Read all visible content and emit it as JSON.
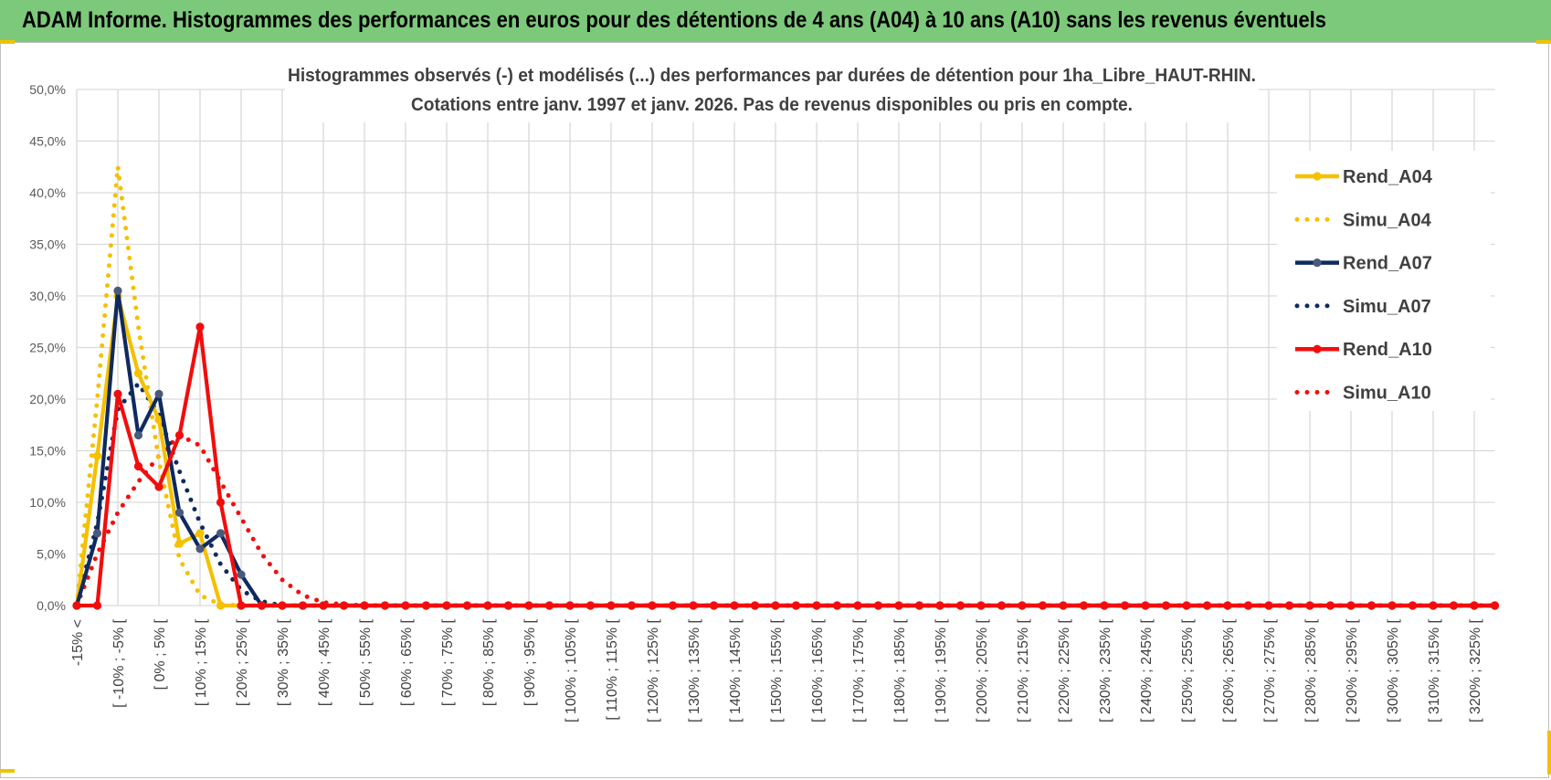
{
  "banner": {
    "title": "ADAM Informe. Histogrammes des performances en euros pour des détentions de 4 ans (A04) à 10 ans (A10) sans les revenus éventuels"
  },
  "colors": {
    "banner": "#7dc97b",
    "A04": "#f5c000",
    "A07": "#0f2a5f",
    "A07_marker": "#4a5a7a",
    "A10": "#f20d0d",
    "grid": "#d9d9d9"
  },
  "chart_data": {
    "type": "line",
    "title": [
      "Histogrammes observés (-) et modélisés (...) des performances par durées de détention pour 1ha_Libre_HAUT-RHIN.",
      "Cotations entre janv. 1997 et janv. 2026. Pas de revenus disponibles ou pris en compte."
    ],
    "ylim": [
      0,
      50
    ],
    "yticks": [
      "0,0%",
      "5,0%",
      "10,0%",
      "15,0%",
      "20,0%",
      "25,0%",
      "30,0%",
      "35,0%",
      "40,0%",
      "45,0%",
      "50,0%"
    ],
    "grid": true,
    "legend_position": "right",
    "n_points": 70,
    "x_tick_labels": [
      "-15% <",
      "[ -10% ; -5% [",
      "[ 0% ; 5% [",
      "[ 10% ; 15% [",
      "[ 20% ; 25% [",
      "[ 30% ; 35% [",
      "[ 40% ; 45% [",
      "[ 50% ; 55% [",
      "[ 60% ; 65% [",
      "[ 70% ; 75% [",
      "[ 80% ; 85% [",
      "[ 90% ; 95% [",
      "[ 100% ; 105% [",
      "[ 110% ; 115% [",
      "[ 120% ; 125% [",
      "[ 130% ; 135% [",
      "[ 140% ; 145% [",
      "[ 150% ; 155% [",
      "[ 160% ; 165% [",
      "[ 170% ; 175% [",
      "[ 180% ; 185% [",
      "[ 190% ; 195% [",
      "[ 200% ; 205% [",
      "[ 210% ; 215% [",
      "[ 220% ; 225% [",
      "[ 230% ; 235% [",
      "[ 240% ; 245% [",
      "[ 250% ; 255% [",
      "[ 260% ; 265% [",
      "[ 270% ; 275% [",
      "[ 280% ; 285% [",
      "[ 290% ; 295% [",
      "[ 300% ; 305% [",
      "[ 310% ; 315% [",
      "[ 320% ; 325% ["
    ],
    "series": [
      {
        "name": "Rend_A04",
        "style": "solid",
        "color": "#f5c000",
        "values": [
          0,
          14.5,
          30,
          22.5,
          18,
          6,
          7,
          0,
          0
        ]
      },
      {
        "name": "Simu_A04",
        "style": "dotted",
        "color": "#f5c000",
        "values": [
          0,
          20,
          42.5,
          27,
          14,
          4.5,
          1,
          0.1,
          0
        ]
      },
      {
        "name": "Rend_A07",
        "style": "solid",
        "color": "#0f2a5f",
        "values": [
          0,
          7,
          30.5,
          16.5,
          20.5,
          9,
          5.5,
          7,
          3,
          0
        ]
      },
      {
        "name": "Simu_A07",
        "style": "dotted",
        "color": "#0f2a5f",
        "values": [
          0,
          8,
          19,
          21.5,
          18.5,
          13,
          8,
          4,
          1.5,
          0.4,
          0
        ]
      },
      {
        "name": "Rend_A10",
        "style": "solid",
        "color": "#f20d0d",
        "values": [
          0,
          0,
          20.5,
          13.5,
          11.5,
          16.5,
          27,
          10,
          0
        ]
      },
      {
        "name": "Simu_A10",
        "style": "dotted",
        "color": "#f20d0d",
        "values": [
          0,
          5,
          9,
          12,
          14.5,
          16.5,
          15.5,
          12,
          8.5,
          5,
          2.5,
          1,
          0.3,
          0.1,
          0
        ]
      }
    ]
  }
}
